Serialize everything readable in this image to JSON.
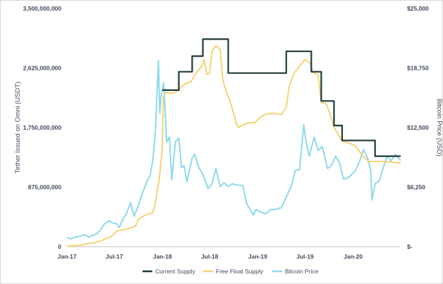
{
  "chart_data": {
    "type": "line",
    "xlabel": "",
    "ylabel_left": "Tether Issued on Omni (USDT)",
    "ylabel_right": "Bitcoin Price (USD)",
    "x_range": [
      "2017-01-01",
      "2020-07-01"
    ],
    "x_ticks": [
      {
        "date": "2017-01-01",
        "label": "Jan-17"
      },
      {
        "date": "2017-07-01",
        "label": "Jul-17"
      },
      {
        "date": "2018-01-01",
        "label": "Jan-18"
      },
      {
        "date": "2018-07-01",
        "label": "Jul-18"
      },
      {
        "date": "2019-01-01",
        "label": "Jan-19"
      },
      {
        "date": "2019-07-01",
        "label": "Jul-19"
      },
      {
        "date": "2020-01-01",
        "label": "Jan-20"
      }
    ],
    "ylim_left": [
      0,
      3500000000
    ],
    "ylim_right": [
      0,
      25000
    ],
    "y_ticks_left": [
      {
        "value": 0,
        "label": "0"
      },
      {
        "value": 875000000,
        "label": "875,000,000"
      },
      {
        "value": 1750000000,
        "label": "1,750,000,000"
      },
      {
        "value": 2625000000,
        "label": "2,625,000,000"
      },
      {
        "value": 3500000000,
        "label": "3,500,000,000"
      }
    ],
    "y_ticks_right": [
      {
        "value": 0,
        "label": "$-"
      },
      {
        "value": 6250,
        "label": "$6,250"
      },
      {
        "value": 12500,
        "label": "$12,500"
      },
      {
        "value": 18750,
        "label": "$18,750"
      },
      {
        "value": 25000,
        "label": "$25,000"
      }
    ],
    "grid": false,
    "legend_position": "bottom",
    "series": [
      {
        "name": "Current Supply",
        "color": "#1f3a3a",
        "axis": "left",
        "style": "step",
        "points": [
          [
            "2018-01-01",
            2300000000
          ],
          [
            "2018-03-05",
            2300000000
          ],
          [
            "2018-03-05",
            2570000000
          ],
          [
            "2018-04-25",
            2570000000
          ],
          [
            "2018-04-25",
            2800000000
          ],
          [
            "2018-06-05",
            2800000000
          ],
          [
            "2018-06-05",
            3050000000
          ],
          [
            "2018-09-10",
            3050000000
          ],
          [
            "2018-09-10",
            2550000000
          ],
          [
            "2019-04-20",
            2550000000
          ],
          [
            "2019-04-20",
            2870000000
          ],
          [
            "2019-07-25",
            2870000000
          ],
          [
            "2019-07-25",
            2570000000
          ],
          [
            "2019-09-01",
            2570000000
          ],
          [
            "2019-09-01",
            2140000000
          ],
          [
            "2019-10-20",
            2140000000
          ],
          [
            "2019-10-20",
            1780000000
          ],
          [
            "2019-11-20",
            1780000000
          ],
          [
            "2019-11-20",
            1560000000
          ],
          [
            "2020-03-25",
            1560000000
          ],
          [
            "2020-03-25",
            1330000000
          ],
          [
            "2020-07-01",
            1330000000
          ]
        ]
      },
      {
        "name": "Free Float Supply",
        "color": "#f5d374",
        "axis": "left",
        "points": [
          [
            "2017-01-01",
            5000000
          ],
          [
            "2017-02-15",
            20000000
          ],
          [
            "2017-03-15",
            40000000
          ],
          [
            "2017-04-10",
            55000000
          ],
          [
            "2017-05-10",
            80000000
          ],
          [
            "2017-05-20",
            100000000
          ],
          [
            "2017-06-20",
            150000000
          ],
          [
            "2017-07-10",
            230000000
          ],
          [
            "2017-08-20",
            260000000
          ],
          [
            "2017-09-20",
            300000000
          ],
          [
            "2017-10-01",
            400000000
          ],
          [
            "2017-10-25",
            460000000
          ],
          [
            "2017-11-25",
            500000000
          ],
          [
            "2017-12-05",
            650000000
          ],
          [
            "2017-12-20",
            1000000000
          ],
          [
            "2017-12-31",
            1400000000
          ],
          [
            "2018-01-05",
            2200000000
          ],
          [
            "2018-01-15",
            2270000000
          ],
          [
            "2018-02-01",
            2250000000
          ],
          [
            "2018-02-20",
            2270000000
          ],
          [
            "2018-03-05",
            2300000000
          ],
          [
            "2018-03-15",
            2350000000
          ],
          [
            "2018-04-01",
            2400000000
          ],
          [
            "2018-04-20",
            2420000000
          ],
          [
            "2018-05-10",
            2550000000
          ],
          [
            "2018-05-20",
            2600000000
          ],
          [
            "2018-06-01",
            2650000000
          ],
          [
            "2018-06-10",
            2750000000
          ],
          [
            "2018-06-20",
            2530000000
          ],
          [
            "2018-07-01",
            2550000000
          ],
          [
            "2018-07-10",
            2880000000
          ],
          [
            "2018-07-25",
            2950000000
          ],
          [
            "2018-08-10",
            2900000000
          ],
          [
            "2018-08-20",
            2450000000
          ],
          [
            "2018-09-01",
            2300000000
          ],
          [
            "2018-09-20",
            2100000000
          ],
          [
            "2018-10-01",
            1950000000
          ],
          [
            "2018-10-10",
            1820000000
          ],
          [
            "2018-10-20",
            1750000000
          ],
          [
            "2018-11-10",
            1800000000
          ],
          [
            "2018-12-01",
            1820000000
          ],
          [
            "2018-12-20",
            1820000000
          ],
          [
            "2019-01-10",
            1900000000
          ],
          [
            "2019-02-01",
            1950000000
          ],
          [
            "2019-03-01",
            1960000000
          ],
          [
            "2019-04-01",
            1940000000
          ],
          [
            "2019-04-20",
            2050000000
          ],
          [
            "2019-05-01",
            2350000000
          ],
          [
            "2019-05-20",
            2550000000
          ],
          [
            "2019-06-10",
            2650000000
          ],
          [
            "2019-07-01",
            2750000000
          ],
          [
            "2019-07-20",
            2700000000
          ],
          [
            "2019-08-01",
            2560000000
          ],
          [
            "2019-08-20",
            2520000000
          ],
          [
            "2019-09-01",
            2120000000
          ],
          [
            "2019-09-20",
            2100000000
          ],
          [
            "2019-10-05",
            1950000000
          ],
          [
            "2019-10-20",
            1750000000
          ],
          [
            "2019-11-05",
            1650000000
          ],
          [
            "2019-11-20",
            1550000000
          ],
          [
            "2019-12-10",
            1530000000
          ],
          [
            "2020-01-10",
            1480000000
          ],
          [
            "2020-01-25",
            1400000000
          ],
          [
            "2020-02-10",
            1320000000
          ],
          [
            "2020-03-01",
            1250000000
          ],
          [
            "2020-05-01",
            1250000000
          ],
          [
            "2020-07-01",
            1230000000
          ]
        ]
      },
      {
        "name": "Bitcoin Price",
        "color": "#8fd8ec",
        "axis": "right",
        "points": [
          [
            "2017-01-01",
            950
          ],
          [
            "2017-01-15",
            820
          ],
          [
            "2017-02-01",
            1000
          ],
          [
            "2017-02-20",
            1100
          ],
          [
            "2017-03-10",
            1250
          ],
          [
            "2017-03-25",
            1000
          ],
          [
            "2017-04-10",
            1200
          ],
          [
            "2017-04-25",
            1350
          ],
          [
            "2017-05-10",
            1800
          ],
          [
            "2017-05-25",
            2400
          ],
          [
            "2017-06-10",
            2700
          ],
          [
            "2017-06-25",
            2500
          ],
          [
            "2017-07-10",
            2400
          ],
          [
            "2017-07-20",
            2000
          ],
          [
            "2017-08-01",
            2800
          ],
          [
            "2017-08-15",
            3400
          ],
          [
            "2017-09-01",
            4600
          ],
          [
            "2017-09-15",
            3200
          ],
          [
            "2017-10-01",
            4300
          ],
          [
            "2017-10-15",
            5500
          ],
          [
            "2017-11-01",
            6700
          ],
          [
            "2017-11-15",
            7500
          ],
          [
            "2017-11-25",
            9000
          ],
          [
            "2017-12-05",
            12000
          ],
          [
            "2017-12-17",
            19500
          ],
          [
            "2017-12-22",
            14000
          ],
          [
            "2017-12-28",
            16000
          ],
          [
            "2018-01-06",
            17200
          ],
          [
            "2018-01-12",
            14000
          ],
          [
            "2018-01-17",
            11000
          ],
          [
            "2018-01-28",
            11500
          ],
          [
            "2018-02-06",
            7000
          ],
          [
            "2018-02-20",
            11000
          ],
          [
            "2018-03-05",
            11400
          ],
          [
            "2018-03-15",
            8300
          ],
          [
            "2018-03-25",
            8500
          ],
          [
            "2018-04-05",
            6800
          ],
          [
            "2018-04-25",
            9300
          ],
          [
            "2018-05-05",
            9700
          ],
          [
            "2018-05-20",
            8300
          ],
          [
            "2018-06-05",
            7600
          ],
          [
            "2018-06-25",
            6100
          ],
          [
            "2018-07-10",
            6600
          ],
          [
            "2018-07-25",
            8200
          ],
          [
            "2018-08-10",
            6300
          ],
          [
            "2018-08-25",
            6700
          ],
          [
            "2018-09-10",
            6300
          ],
          [
            "2018-09-25",
            6600
          ],
          [
            "2018-10-10",
            6500
          ],
          [
            "2018-11-05",
            6400
          ],
          [
            "2018-11-20",
            4500
          ],
          [
            "2018-12-05",
            3800
          ],
          [
            "2018-12-15",
            3300
          ],
          [
            "2018-12-25",
            3900
          ],
          [
            "2019-01-10",
            3650
          ],
          [
            "2019-02-01",
            3450
          ],
          [
            "2019-02-20",
            3900
          ],
          [
            "2019-03-10",
            3900
          ],
          [
            "2019-04-01",
            4100
          ],
          [
            "2019-04-20",
            5200
          ],
          [
            "2019-05-10",
            6400
          ],
          [
            "2019-05-25",
            8000
          ],
          [
            "2019-06-10",
            8100
          ],
          [
            "2019-06-26",
            12800
          ],
          [
            "2019-07-05",
            11000
          ],
          [
            "2019-07-17",
            9500
          ],
          [
            "2019-08-05",
            11500
          ],
          [
            "2019-08-20",
            10100
          ],
          [
            "2019-09-05",
            10500
          ],
          [
            "2019-09-25",
            8200
          ],
          [
            "2019-10-10",
            8500
          ],
          [
            "2019-10-26",
            9500
          ],
          [
            "2019-11-10",
            8800
          ],
          [
            "2019-11-25",
            7100
          ],
          [
            "2019-12-10",
            7200
          ],
          [
            "2019-12-20",
            7400
          ],
          [
            "2020-01-10",
            8000
          ],
          [
            "2020-01-25",
            8900
          ],
          [
            "2020-02-10",
            10200
          ],
          [
            "2020-02-25",
            9300
          ],
          [
            "2020-03-08",
            8000
          ],
          [
            "2020-03-13",
            4900
          ],
          [
            "2020-03-25",
            6600
          ],
          [
            "2020-04-10",
            6900
          ],
          [
            "2020-04-30",
            8700
          ],
          [
            "2020-05-10",
            9500
          ],
          [
            "2020-05-25",
            9000
          ],
          [
            "2020-06-10",
            9700
          ],
          [
            "2020-06-25",
            9200
          ],
          [
            "2020-07-01",
            9100
          ]
        ]
      }
    ]
  }
}
